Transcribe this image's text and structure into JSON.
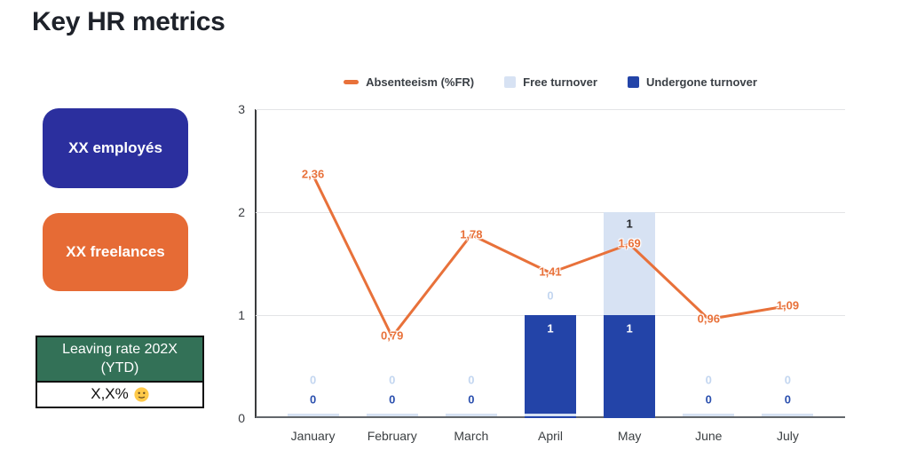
{
  "title": "Key HR metrics",
  "cards": {
    "employees": {
      "label": "XX employés",
      "color": "#2B2F9E"
    },
    "freelances": {
      "label": "XX freelances",
      "color": "#E66B35"
    }
  },
  "leaving_rate": {
    "header_line1": "Leaving rate 202X",
    "header_line2": "(YTD)",
    "value": "X,X%",
    "emoji": "slightly-smiling-face",
    "header_color": "#337157"
  },
  "chart_data": {
    "type": "combo",
    "stacked": true,
    "legend_position": "top",
    "grid": true,
    "categories": [
      "January",
      "February",
      "March",
      "April",
      "May",
      "June",
      "July"
    ],
    "y_ticks": [
      0,
      1,
      2,
      3
    ],
    "ylim": [
      0,
      3
    ],
    "series": [
      {
        "name": "Absenteeism (%FR)",
        "type": "line",
        "color": "#E8713A",
        "values": [
          2.36,
          0.79,
          1.78,
          1.41,
          1.69,
          0.96,
          1.09
        ],
        "point_labels": [
          "2,36",
          "0,79",
          "1,78",
          "1,41",
          "1,69",
          "0,96",
          "1,09"
        ]
      },
      {
        "name": "Free turnover",
        "type": "bar",
        "color": "#D7E2F3",
        "values": [
          0,
          0,
          0,
          0,
          1,
          0,
          0
        ]
      },
      {
        "name": "Undergone turnover",
        "type": "bar",
        "color": "#2344A8",
        "values": [
          0,
          0,
          0,
          1,
          1,
          0,
          0
        ]
      }
    ],
    "label_colors": {
      "zero_free": "#C3D6F0",
      "zero_undergone": "#2A4FAE",
      "inside_bar": "#FFFFFF",
      "free_bar_top": "#24262A"
    }
  }
}
